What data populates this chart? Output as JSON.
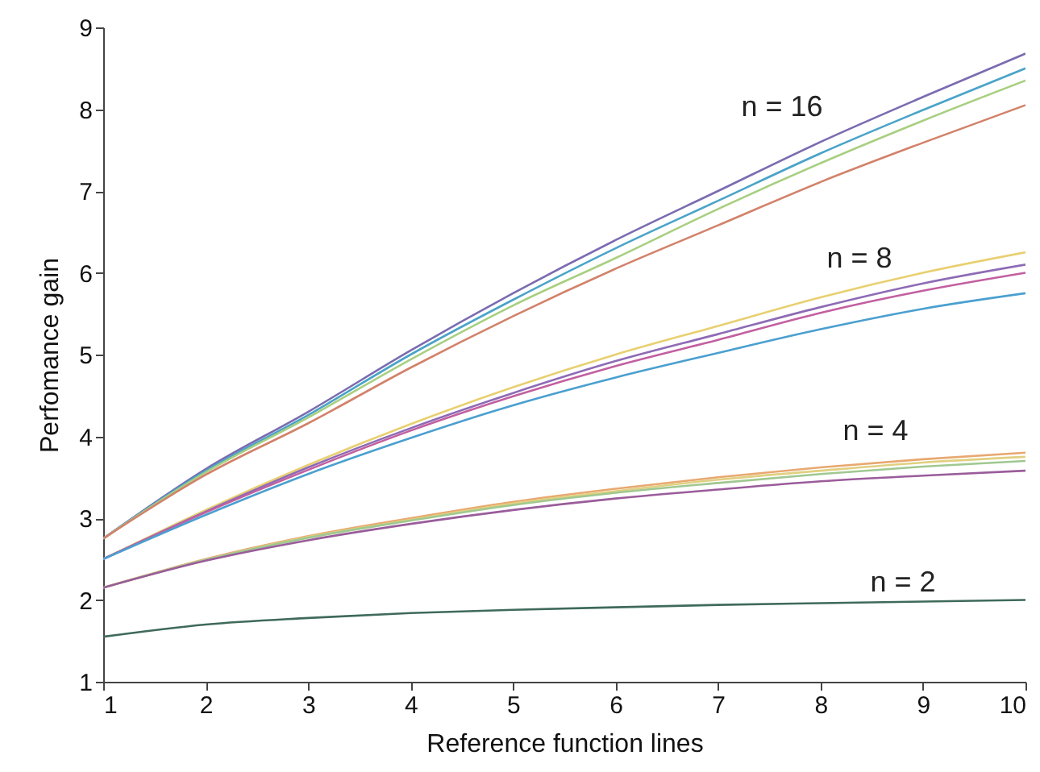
{
  "chart_data": {
    "type": "line",
    "xlabel": "Reference function lines",
    "ylabel": "Perfomance gain",
    "x": [
      1,
      2,
      3,
      4,
      5,
      6,
      7,
      8,
      9,
      10
    ],
    "xlim": [
      1,
      10
    ],
    "xticks": [
      1,
      2,
      3,
      4,
      5,
      6,
      7,
      8,
      9,
      10
    ],
    "ylim": [
      1,
      9
    ],
    "yticks": [
      1,
      2,
      3,
      4,
      5,
      6,
      7,
      8,
      9
    ],
    "grid": false,
    "series": [
      {
        "color": "#7b6bb0",
        "values": [
          2.75,
          3.6,
          4.3,
          5.05,
          5.75,
          6.4,
          7.0,
          7.6,
          8.15,
          8.68
        ]
      },
      {
        "color": "#4aa3c8",
        "values": [
          2.75,
          3.58,
          4.26,
          5.0,
          5.67,
          6.3,
          6.88,
          7.46,
          7.99,
          8.5
        ]
      },
      {
        "color": "#a8cf80",
        "values": [
          2.75,
          3.56,
          4.23,
          4.94,
          5.6,
          6.18,
          6.78,
          7.34,
          7.86,
          8.35
        ]
      },
      {
        "color": "#d2826a",
        "values": [
          2.75,
          3.53,
          4.16,
          4.84,
          5.47,
          6.05,
          6.58,
          7.11,
          7.59,
          8.05
        ]
      },
      {
        "color": "#e8d070",
        "values": [
          2.5,
          3.1,
          3.65,
          4.15,
          4.6,
          5.0,
          5.35,
          5.7,
          6.0,
          6.25
        ]
      },
      {
        "color": "#8e6bb5",
        "values": [
          2.5,
          3.08,
          3.62,
          4.1,
          4.53,
          4.92,
          5.25,
          5.58,
          5.87,
          6.1
        ]
      },
      {
        "color": "#c25fa0",
        "values": [
          2.5,
          3.07,
          3.59,
          4.07,
          4.49,
          4.86,
          5.18,
          5.51,
          5.78,
          6.0
        ]
      },
      {
        "color": "#4a9fd0",
        "values": [
          2.5,
          3.04,
          3.54,
          3.98,
          4.38,
          4.72,
          5.02,
          5.31,
          5.56,
          5.75
        ]
      },
      {
        "color": "#e8a870",
        "values": [
          2.15,
          2.5,
          2.78,
          3.0,
          3.2,
          3.36,
          3.5,
          3.62,
          3.72,
          3.8
        ]
      },
      {
        "color": "#e0d080",
        "values": [
          2.15,
          2.49,
          2.77,
          2.98,
          3.18,
          3.33,
          3.47,
          3.58,
          3.68,
          3.75
        ]
      },
      {
        "color": "#a0c890",
        "values": [
          2.15,
          2.49,
          2.76,
          2.97,
          3.16,
          3.31,
          3.43,
          3.54,
          3.63,
          3.7
        ]
      },
      {
        "color": "#9a5c9a",
        "values": [
          2.15,
          2.48,
          2.73,
          2.93,
          3.1,
          3.24,
          3.35,
          3.45,
          3.52,
          3.58
        ]
      },
      {
        "color": "#3f6a5a",
        "values": [
          1.55,
          1.7,
          1.78,
          1.84,
          1.88,
          1.91,
          1.94,
          1.96,
          1.98,
          2.0
        ]
      }
    ],
    "annotations": [
      "n = 16",
      "n = 8",
      "n = 4",
      "n = 2"
    ]
  }
}
